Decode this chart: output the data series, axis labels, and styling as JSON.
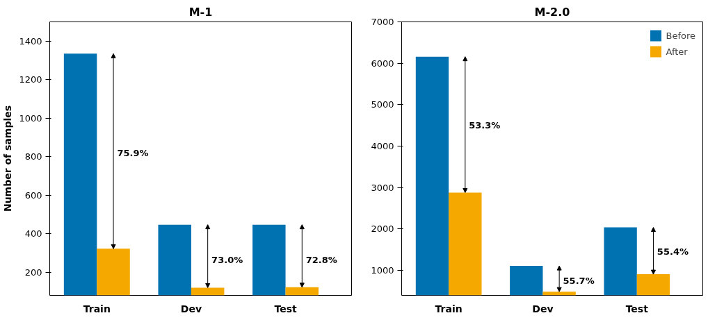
{
  "chart_data": [
    {
      "type": "bar",
      "title": "M-1",
      "ylabel": "Number of samples",
      "categories": [
        "Train",
        "Dev",
        "Test"
      ],
      "series": [
        {
          "color": "#0072b2",
          "values": [
            1335,
            447,
            447
          ]
        },
        {
          "color": "#f5a800",
          "values": [
            322,
            120,
            122
          ]
        }
      ],
      "ylim": [
        80,
        1500
      ],
      "yticks": [
        200,
        400,
        600,
        800,
        1000,
        1200,
        1400
      ],
      "grid": false,
      "legend": false,
      "annotations": [
        {
          "text": "75.9%",
          "x": "Train",
          "y": 820
        },
        {
          "text": "73.0%",
          "x": "Dev",
          "y": 265
        },
        {
          "text": "72.8%",
          "x": "Test",
          "y": 265
        }
      ]
    },
    {
      "type": "bar",
      "title": "M-2.0",
      "categories": [
        "Train",
        "Dev",
        "Test"
      ],
      "series": [
        {
          "name": "Before",
          "color": "#0072b2",
          "values": [
            6160,
            1110,
            2040
          ]
        },
        {
          "name": "After",
          "color": "#f5a800",
          "values": [
            2880,
            490,
            910
          ]
        }
      ],
      "ylim": [
        400,
        7000
      ],
      "yticks": [
        1000,
        2000,
        3000,
        4000,
        5000,
        6000,
        7000
      ],
      "grid": false,
      "legend": "top right",
      "annotations": [
        {
          "text": "53.3%",
          "x": "Train",
          "y": 4500
        },
        {
          "text": "55.7%",
          "x": "Dev",
          "y": 750
        },
        {
          "text": "55.4%",
          "x": "Test",
          "y": 1450
        }
      ]
    }
  ]
}
